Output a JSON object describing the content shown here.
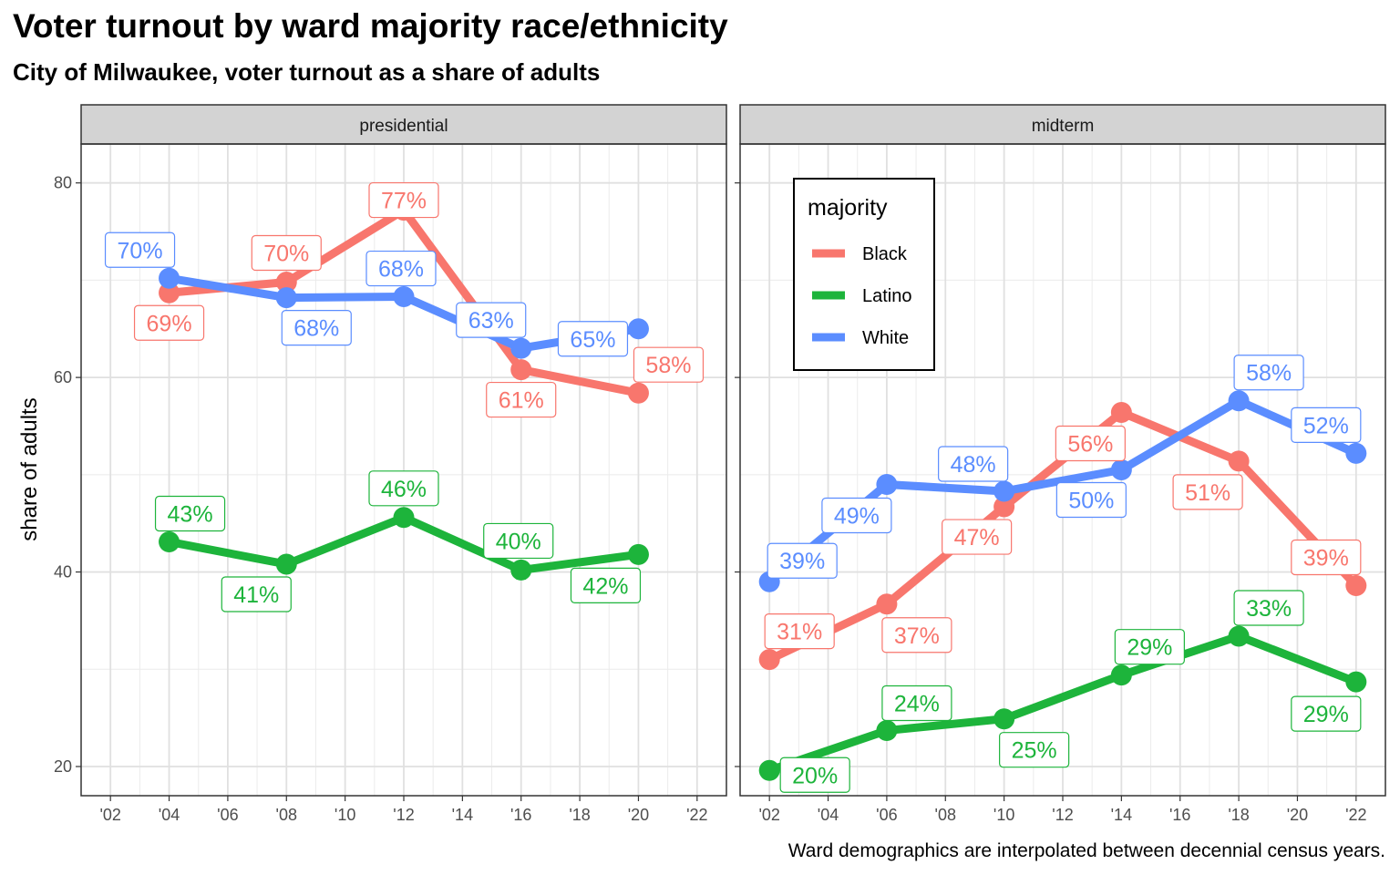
{
  "title": "Voter turnout by ward majority race/ethnicity",
  "subtitle": "City of Milwaukee, voter turnout as a share of adults",
  "caption": "Ward demographics are interpolated between decennial census years.",
  "chart_data": {
    "type": "line",
    "ylabel": "share of adults",
    "xlabel": "",
    "ylim": [
      17,
      84
    ],
    "xlim": [
      2001,
      2023
    ],
    "y_ticks": [
      20,
      40,
      60,
      80
    ],
    "x_ticks": [
      2002,
      2004,
      2006,
      2008,
      2010,
      2012,
      2014,
      2016,
      2018,
      2020,
      2022
    ],
    "x_tick_labels": [
      "'02",
      "'04",
      "'06",
      "'08",
      "'10",
      "'12",
      "'14",
      "'16",
      "'18",
      "'20",
      "'22"
    ],
    "grid": true,
    "legend": {
      "title": "majority",
      "placement": "inside top-left of midterm panel",
      "entries": [
        "Black",
        "Latino",
        "White"
      ]
    },
    "colors": {
      "Black": "#F8766D",
      "Latino": "#1DB43B",
      "White": "#5B8DFF"
    },
    "panels": [
      {
        "name": "presidential",
        "series": [
          {
            "name": "Black",
            "x": [
              2004,
              2008,
              2012,
              2016,
              2020
            ],
            "values": [
              68.7,
              69.8,
              77.2,
              60.8,
              58.4
            ],
            "labels": [
              "69%",
              "70%",
              "77%",
              "61%",
              "58%"
            ]
          },
          {
            "name": "Latino",
            "x": [
              2004,
              2008,
              2012,
              2016,
              2020
            ],
            "values": [
              43.1,
              40.8,
              45.6,
              40.2,
              41.8
            ],
            "labels": [
              "43%",
              "41%",
              "46%",
              "40%",
              "42%"
            ]
          },
          {
            "name": "White",
            "x": [
              2004,
              2008,
              2012,
              2016,
              2020
            ],
            "values": [
              70.2,
              68.2,
              68.3,
              63.0,
              65.0
            ],
            "labels": [
              "70%",
              "68%",
              "68%",
              "63%",
              "65%"
            ]
          }
        ]
      },
      {
        "name": "midterm",
        "series": [
          {
            "name": "Black",
            "x": [
              2002,
              2006,
              2010,
              2014,
              2018,
              2022
            ],
            "values": [
              31.0,
              36.7,
              46.7,
              56.4,
              51.4,
              38.6
            ],
            "labels": [
              "31%",
              "37%",
              "47%",
              "56%",
              "51%",
              "39%"
            ]
          },
          {
            "name": "Latino",
            "x": [
              2002,
              2006,
              2010,
              2014,
              2018,
              2022
            ],
            "values": [
              19.6,
              23.7,
              24.9,
              29.4,
              33.4,
              28.7
            ],
            "labels": [
              "20%",
              "24%",
              "25%",
              "29%",
              "33%",
              "29%"
            ]
          },
          {
            "name": "White",
            "x": [
              2002,
              2006,
              2010,
              2014,
              2018,
              2022
            ],
            "values": [
              39.0,
              49.0,
              48.3,
              50.5,
              57.6,
              52.2
            ],
            "labels": [
              "39%",
              "49%",
              "48%",
              "50%",
              "58%",
              "52%"
            ]
          }
        ]
      }
    ]
  }
}
